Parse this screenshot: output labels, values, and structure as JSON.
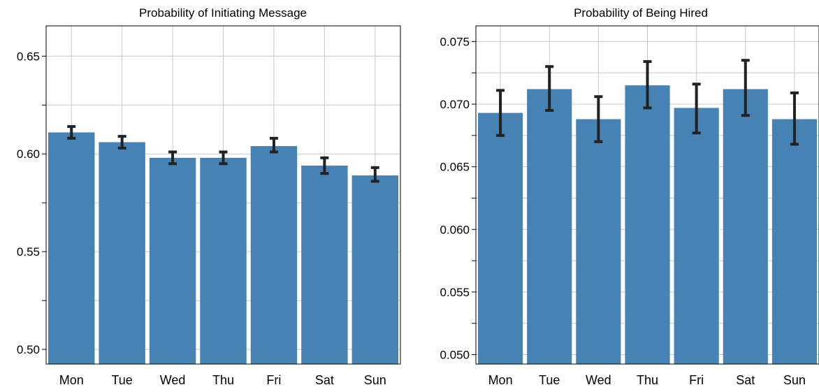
{
  "chart_data": [
    {
      "type": "bar",
      "title": "Probability of Initiating Message",
      "categories": [
        "Mon",
        "Tue",
        "Wed",
        "Thu",
        "Fri",
        "Sat",
        "Sun"
      ],
      "values": [
        0.611,
        0.606,
        0.598,
        0.598,
        0.604,
        0.594,
        0.589
      ],
      "error_low": [
        0.608,
        0.603,
        0.595,
        0.595,
        0.601,
        0.59,
        0.586
      ],
      "error_high": [
        0.614,
        0.609,
        0.601,
        0.601,
        0.608,
        0.598,
        0.593
      ],
      "ylim": [
        0.4925,
        0.6655
      ],
      "yticks": [
        0.5,
        0.55,
        0.6,
        0.65
      ],
      "ytick_labels": [
        "0.50",
        "0.55",
        "0.60",
        "0.65"
      ],
      "grid": true,
      "bar_color": "#4682b4",
      "error_color": "#222222"
    },
    {
      "type": "bar",
      "title": "Probability of Being Hired",
      "categories": [
        "Mon",
        "Tue",
        "Wed",
        "Thu",
        "Fri",
        "Sat",
        "Sun"
      ],
      "values": [
        0.0693,
        0.0712,
        0.0688,
        0.0715,
        0.0697,
        0.0712,
        0.0688
      ],
      "error_low": [
        0.0675,
        0.0695,
        0.067,
        0.0697,
        0.0677,
        0.0691,
        0.0668
      ],
      "error_high": [
        0.0711,
        0.073,
        0.0706,
        0.0734,
        0.0716,
        0.0735,
        0.0709
      ],
      "ylim": [
        0.04925,
        0.07625
      ],
      "yticks": [
        0.05,
        0.055,
        0.06,
        0.065,
        0.07,
        0.075
      ],
      "ytick_labels": [
        "0.050",
        "0.055",
        "0.060",
        "0.065",
        "0.070",
        "0.075"
      ],
      "grid": true,
      "bar_color": "#4682b4",
      "error_color": "#222222"
    }
  ]
}
